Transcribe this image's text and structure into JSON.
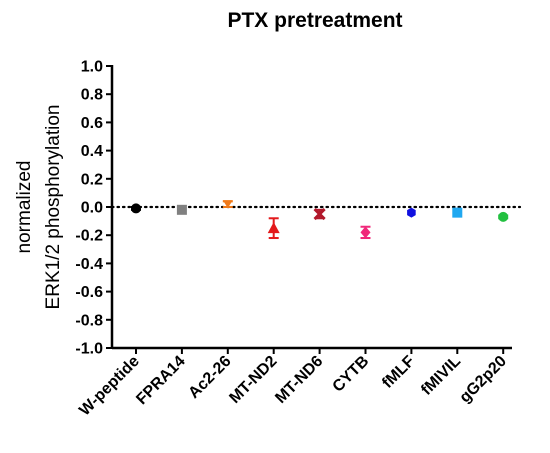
{
  "chart_data": {
    "type": "scatter",
    "title": "PTX pretreatment",
    "ylabel_lines": [
      "normalized",
      "ERK1/2 phosphorylation"
    ],
    "ylim": [
      -1.0,
      1.0
    ],
    "yticks": [
      "1.0",
      "0.8",
      "0.6",
      "0.4",
      "0.2",
      "0.0",
      "-0.2",
      "-0.4",
      "-0.6",
      "-0.8",
      "-1.0"
    ],
    "ytick_values": [
      1.0,
      0.8,
      0.6,
      0.4,
      0.2,
      0.0,
      -0.2,
      -0.4,
      -0.6,
      -0.8,
      -1.0
    ],
    "reference_line": 0.0,
    "categories": [
      "W-peptide",
      "FPRA14",
      "Ac2-26",
      "MT-ND2",
      "MT-ND6",
      "CYTB",
      "fMLF",
      "fMIVIL",
      "gG2p20"
    ],
    "series": [
      {
        "category": "W-peptide",
        "mean": -0.01,
        "error": 0.01,
        "color": "#000000",
        "marker": "circle"
      },
      {
        "category": "FPRA14",
        "mean": -0.02,
        "error": 0.0,
        "color": "#808080",
        "marker": "square"
      },
      {
        "category": "Ac2-26",
        "mean": 0.02,
        "error": 0.02,
        "color": "#f07a1a",
        "marker": "triangle-down"
      },
      {
        "category": "MT-ND2",
        "mean": -0.15,
        "error": 0.07,
        "color": "#e31a1c",
        "marker": "triangle-up"
      },
      {
        "category": "MT-ND6",
        "mean": -0.05,
        "error": 0.03,
        "color": "#b2182b",
        "marker": "x"
      },
      {
        "category": "CYTB",
        "mean": -0.18,
        "error": 0.04,
        "color": "#f0287a",
        "marker": "diamond"
      },
      {
        "category": "fMLF",
        "mean": -0.04,
        "error": 0.0,
        "color": "#1010e0",
        "marker": "hexagon"
      },
      {
        "category": "fMIVIL",
        "mean": -0.04,
        "error": 0.0,
        "color": "#20a8f0",
        "marker": "square"
      },
      {
        "category": "gG2p20",
        "mean": -0.07,
        "error": 0.01,
        "color": "#22c040",
        "marker": "circle"
      }
    ]
  }
}
